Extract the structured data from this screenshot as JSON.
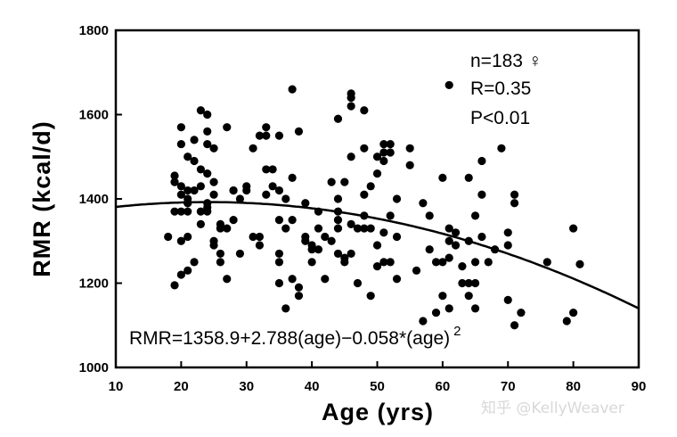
{
  "chart_data": {
    "type": "scatter",
    "xlabel": "Age (yrs)",
    "ylabel": "RMR (kcal/d)",
    "xlim": [
      10,
      90
    ],
    "ylim": [
      1000,
      1800
    ],
    "x_ticks": [
      10,
      20,
      30,
      40,
      50,
      60,
      70,
      80,
      90
    ],
    "y_ticks": [
      1000,
      1200,
      1400,
      1600,
      1800
    ],
    "grid": false,
    "annotations": [
      "n=183 ♀",
      "R=0.35",
      "P<0.01"
    ],
    "equation": {
      "text": "RMR=1358.9+2.788(age)−0.058*(age)",
      "superscript": "2"
    },
    "fit": {
      "type": "quadratic",
      "intercept": 1358.9,
      "b1": 2.788,
      "b2": -0.058
    },
    "points": [
      [
        18,
        1310
      ],
      [
        19,
        1455
      ],
      [
        19,
        1440
      ],
      [
        19,
        1195
      ],
      [
        19,
        1370
      ],
      [
        20,
        1570
      ],
      [
        20,
        1430
      ],
      [
        20,
        1410
      ],
      [
        20,
        1300
      ],
      [
        20,
        1220
      ],
      [
        20,
        1370
      ],
      [
        20,
        1530
      ],
      [
        21,
        1400
      ],
      [
        21,
        1390
      ],
      [
        21,
        1370
      ],
      [
        21,
        1310
      ],
      [
        21,
        1230
      ],
      [
        21,
        1500
      ],
      [
        21,
        1420
      ],
      [
        21,
        1390
      ],
      [
        22,
        1490
      ],
      [
        22,
        1540
      ],
      [
        22,
        1250
      ],
      [
        22,
        1420
      ],
      [
        23,
        1610
      ],
      [
        23,
        1470
      ],
      [
        23,
        1430
      ],
      [
        23,
        1370
      ],
      [
        23,
        1340
      ],
      [
        24,
        1600
      ],
      [
        24,
        1560
      ],
      [
        24,
        1530
      ],
      [
        24,
        1380
      ],
      [
        24,
        1370
      ],
      [
        24,
        1460
      ],
      [
        24,
        1390
      ],
      [
        25,
        1290
      ],
      [
        25,
        1440
      ],
      [
        25,
        1300
      ],
      [
        25,
        1410
      ],
      [
        25,
        1520
      ],
      [
        26,
        1340
      ],
      [
        26,
        1270
      ],
      [
        26,
        1250
      ],
      [
        26,
        1330
      ],
      [
        27,
        1570
      ],
      [
        27,
        1210
      ],
      [
        27,
        1330
      ],
      [
        28,
        1420
      ],
      [
        28,
        1420
      ],
      [
        28,
        1350
      ],
      [
        29,
        1270
      ],
      [
        29,
        1400
      ],
      [
        30,
        1420
      ],
      [
        30,
        1430
      ],
      [
        31,
        1520
      ],
      [
        31,
        1310
      ],
      [
        32,
        1310
      ],
      [
        32,
        1550
      ],
      [
        32,
        1290
      ],
      [
        33,
        1570
      ],
      [
        33,
        1550
      ],
      [
        33,
        1470
      ],
      [
        33,
        1410
      ],
      [
        34,
        1430
      ],
      [
        34,
        1470
      ],
      [
        35,
        1550
      ],
      [
        35,
        1420
      ],
      [
        35,
        1350
      ],
      [
        35,
        1270
      ],
      [
        35,
        1250
      ],
      [
        35,
        1200
      ],
      [
        36,
        1140
      ],
      [
        36,
        1400
      ],
      [
        36,
        1330
      ],
      [
        37,
        1660
      ],
      [
        37,
        1450
      ],
      [
        37,
        1350
      ],
      [
        37,
        1210
      ],
      [
        38,
        1560
      ],
      [
        38,
        1190
      ],
      [
        38,
        1170
      ],
      [
        39,
        1390
      ],
      [
        39,
        1310
      ],
      [
        39,
        1300
      ],
      [
        40,
        1290
      ],
      [
        40,
        1280
      ],
      [
        40,
        1250
      ],
      [
        41,
        1370
      ],
      [
        41,
        1330
      ],
      [
        41,
        1280
      ],
      [
        42,
        1310
      ],
      [
        42,
        1210
      ],
      [
        43,
        1440
      ],
      [
        43,
        1300
      ],
      [
        44,
        1590
      ],
      [
        44,
        1400
      ],
      [
        44,
        1370
      ],
      [
        44,
        1350
      ],
      [
        44,
        1330
      ],
      [
        44,
        1270
      ],
      [
        45,
        1440
      ],
      [
        45,
        1260
      ],
      [
        45,
        1250
      ],
      [
        46,
        1650
      ],
      [
        46,
        1640
      ],
      [
        46,
        1620
      ],
      [
        46,
        1500
      ],
      [
        46,
        1340
      ],
      [
        46,
        1270
      ],
      [
        47,
        1330
      ],
      [
        47,
        1200
      ],
      [
        48,
        1610
      ],
      [
        48,
        1520
      ],
      [
        48,
        1410
      ],
      [
        48,
        1360
      ],
      [
        48,
        1330
      ],
      [
        49,
        1170
      ],
      [
        49,
        1430
      ],
      [
        49,
        1330
      ],
      [
        50,
        1500
      ],
      [
        50,
        1460
      ],
      [
        50,
        1290
      ],
      [
        50,
        1240
      ],
      [
        51,
        1530
      ],
      [
        51,
        1510
      ],
      [
        51,
        1490
      ],
      [
        51,
        1320
      ],
      [
        51,
        1250
      ],
      [
        52,
        1530
      ],
      [
        52,
        1510
      ],
      [
        52,
        1360
      ],
      [
        52,
        1250
      ],
      [
        53,
        1400
      ],
      [
        53,
        1210
      ],
      [
        53,
        1310
      ],
      [
        55,
        1520
      ],
      [
        55,
        1480
      ],
      [
        56,
        1230
      ],
      [
        57,
        1390
      ],
      [
        57,
        1110
      ],
      [
        58,
        1360
      ],
      [
        58,
        1280
      ],
      [
        59,
        1130
      ],
      [
        59,
        1250
      ],
      [
        60,
        1170
      ],
      [
        60,
        1450
      ],
      [
        60,
        1250
      ],
      [
        61,
        1670
      ],
      [
        61,
        1330
      ],
      [
        61,
        1300
      ],
      [
        61,
        1260
      ],
      [
        61,
        1140
      ],
      [
        62,
        1320
      ],
      [
        62,
        1290
      ],
      [
        63,
        1240
      ],
      [
        63,
        1200
      ],
      [
        64,
        1450
      ],
      [
        64,
        1300
      ],
      [
        64,
        1170
      ],
      [
        64,
        1200
      ],
      [
        65,
        1200
      ],
      [
        65,
        1140
      ],
      [
        65,
        1360
      ],
      [
        65,
        1250
      ],
      [
        66,
        1490
      ],
      [
        66,
        1410
      ],
      [
        66,
        1310
      ],
      [
        67,
        1250
      ],
      [
        68,
        1280
      ],
      [
        69,
        1520
      ],
      [
        70,
        1320
      ],
      [
        70,
        1290
      ],
      [
        70,
        1160
      ],
      [
        71,
        1410
      ],
      [
        71,
        1390
      ],
      [
        71,
        1100
      ],
      [
        72,
        1130
      ],
      [
        76,
        1250
      ],
      [
        79,
        1110
      ],
      [
        80,
        1330
      ],
      [
        80,
        1130
      ],
      [
        81,
        1245
      ]
    ]
  },
  "watermark": "知乎 @KellyWeaver"
}
